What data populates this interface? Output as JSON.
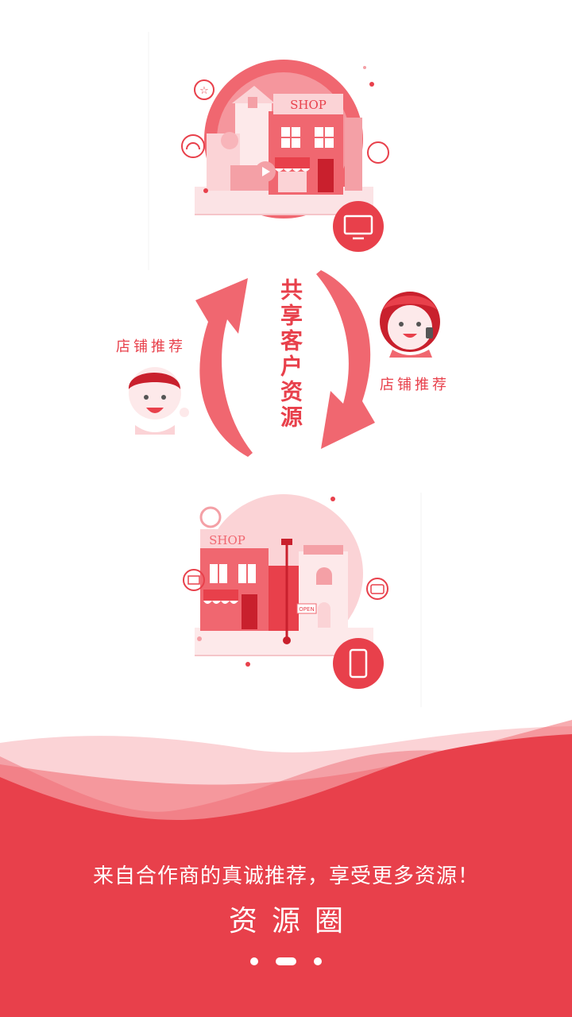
{
  "illustration": {
    "top_shop_sign": "SHOP",
    "bottom_shop_sign": "SHOP",
    "bottom_open_sign": "OPEN",
    "left_label": "店铺推荐",
    "right_label": "店铺推荐",
    "center_title": "共享客户资源"
  },
  "footer": {
    "tagline": "来自合作商的真诚推荐，享受更多资源！",
    "app_name": "资源圈"
  },
  "pager": {
    "count": 3,
    "active_index": 1
  },
  "colors": {
    "primary": "#e8404b",
    "light": "#f4a0a6",
    "pale": "#fbd3d6",
    "mid": "#f06770"
  }
}
